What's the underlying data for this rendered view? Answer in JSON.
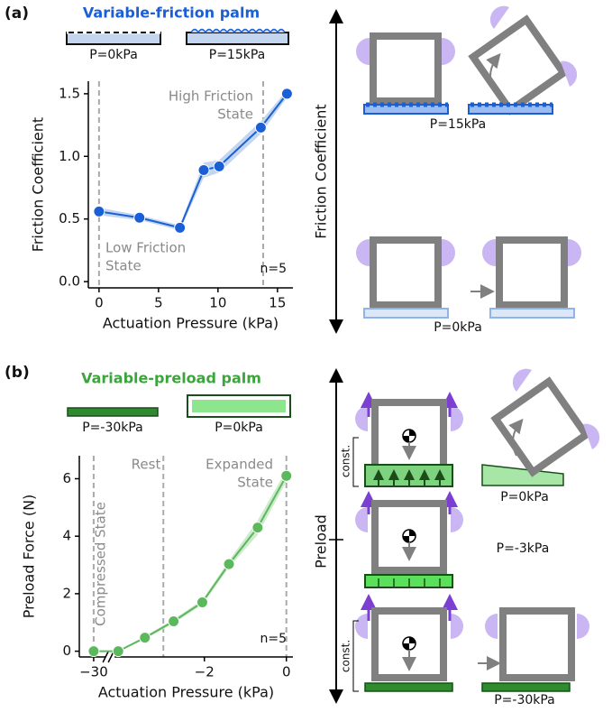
{
  "panel_a": {
    "label": "(a)",
    "palm_title": "Variable-friction palm",
    "palm_states": [
      "P=0kPa",
      "P=15kPa"
    ],
    "diagram_axis": "Friction Coefficient",
    "diagram_labels": [
      "P=15kPa",
      "P=0kPa"
    ]
  },
  "panel_b": {
    "label": "(b)",
    "palm_title": "Variable-preload palm",
    "palm_states": [
      "P=-30kPa",
      "P=0kPa"
    ],
    "diagram_axis": "Preload",
    "const_labels": [
      "const.",
      "const."
    ],
    "diagram_labels": [
      "P=0kPa",
      "P=-3kPa",
      "P=-30kPa"
    ]
  },
  "chart_data": [
    {
      "type": "line",
      "xlabel": "Actuation Pressure (kPa)",
      "ylabel": "Friction Coefficient",
      "x": [
        0,
        3.4,
        6.8,
        8.8,
        10.1,
        13.6,
        15.8
      ],
      "values": [
        0.56,
        0.51,
        0.43,
        0.89,
        0.92,
        1.23,
        1.5
      ],
      "errors": [
        0.03,
        0.02,
        0.02,
        0.06,
        0.05,
        0.05,
        0.03
      ],
      "color": "#1a5fd6",
      "band_color": "#c3d5ef",
      "xlim": [
        -0.9,
        16.3
      ],
      "ylim": [
        -0.05,
        1.6
      ],
      "xticks": [
        0,
        5,
        10,
        15
      ],
      "yticks": [
        {
          "value": 0,
          "label": "0.0"
        },
        0.5,
        {
          "value": 1,
          "label": "1.0"
        },
        1.5
      ],
      "vlines": [
        0,
        13.8
      ],
      "annotations": [
        "High Friction",
        "State",
        "Low Friction",
        "State",
        "n=5"
      ]
    },
    {
      "type": "line",
      "xlabel": "Actuation Pressure (kPa)",
      "ylabel": "Preload Force (N)",
      "x": [
        -30,
        -4.1,
        -3.45,
        -2.75,
        -2.05,
        -1.4,
        -0.7,
        0
      ],
      "values": [
        0,
        0,
        0.47,
        1.04,
        1.7,
        3.03,
        4.3,
        6.1
      ],
      "errors": [
        0.02,
        0.02,
        0.05,
        0.07,
        0.08,
        0.12,
        0.25,
        0.2
      ],
      "color": "#5cb85c",
      "band_color": "#cdebcd",
      "xlim": [
        -30.35,
        0.16
      ],
      "xbreak": [
        -29.6,
        -4.3
      ],
      "ylim": [
        -0.2,
        6.8
      ],
      "xticks": [
        {
          "value": -30,
          "label": "−30"
        },
        {
          "value": -2,
          "label": "−2"
        },
        0
      ],
      "yticks": [
        0,
        2,
        4,
        6
      ],
      "vlines": [
        -30,
        -3,
        0
      ],
      "annotations": [
        "Compressed State",
        "Rest",
        "Expanded",
        "State",
        "n=5"
      ]
    }
  ]
}
